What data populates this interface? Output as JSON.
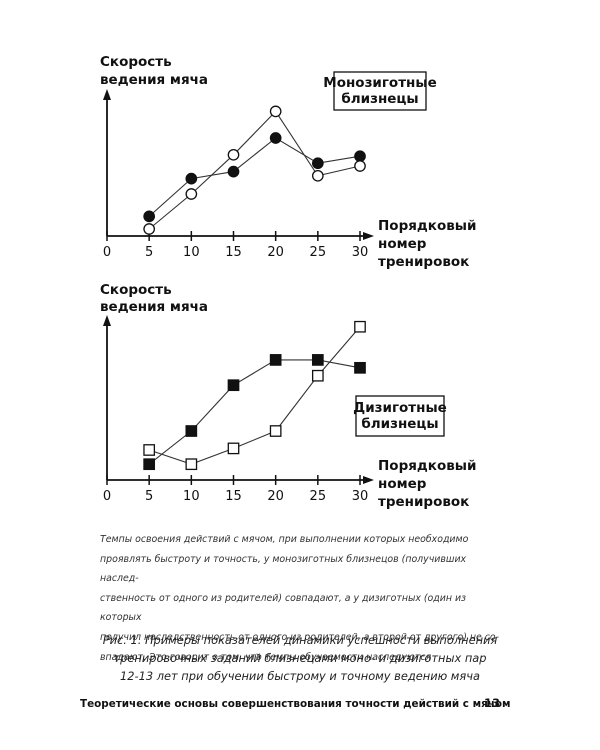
{
  "chart_data": [
    {
      "type": "line",
      "ylabel": [
        "Скорость",
        "ведения мяча"
      ],
      "xlabel": [
        "Порядковый",
        "номер",
        "тренировок"
      ],
      "xticks": [
        0,
        5,
        10,
        15,
        20,
        25,
        30
      ],
      "xlim": [
        0,
        30
      ],
      "ylim": [
        0,
        10
      ],
      "legend": [
        "Монозиготные",
        "близнецы"
      ],
      "legend_placement": "top-right",
      "marker_shape": "circle",
      "series": [
        {
          "style": "filled",
          "x": [
            5,
            10,
            15,
            20,
            25,
            30
          ],
          "y": [
            1.4,
            4.1,
            4.6,
            7.0,
            5.2,
            5.7
          ]
        },
        {
          "style": "open",
          "x": [
            5,
            10,
            15,
            20,
            25,
            30
          ],
          "y": [
            0.5,
            3.0,
            5.8,
            8.9,
            4.3,
            5.0
          ]
        }
      ]
    },
    {
      "type": "line",
      "ylabel": [
        "Скорость",
        "ведения мяча"
      ],
      "xlabel": [
        "Порядковый",
        "номер",
        "тренировок"
      ],
      "xticks": [
        0,
        5,
        10,
        15,
        20,
        25,
        30
      ],
      "xlim": [
        0,
        30
      ],
      "ylim": [
        0,
        10
      ],
      "legend": [
        "Дизиготные",
        "близнецы"
      ],
      "legend_placement": "bottom-right",
      "marker_shape": "square",
      "series": [
        {
          "style": "filled",
          "x": [
            5,
            10,
            15,
            20,
            25,
            30
          ],
          "y": [
            1.0,
            3.1,
            6.0,
            7.6,
            7.6,
            7.1
          ]
        },
        {
          "style": "open",
          "x": [
            5,
            10,
            15,
            20,
            25,
            30
          ],
          "y": [
            1.9,
            1.0,
            2.0,
            3.1,
            6.6,
            9.7
          ]
        }
      ]
    }
  ],
  "caption_lines": [
    "Темпы освоения действий с мячом, при выполнении которых необходимо",
    "проявлять быстроту и точность, у монозиготных близнецов (получивших наслед-",
    "ственность от одного из родителей) совпадают, а у дизиготных (один из которых",
    "получил наследственность от одного из родителей, а второй от другого) не со-",
    "впадают. Это говорит о том, что темпы обучаемости наследуются"
  ],
  "figure_caption_lines": [
    "Рис. 1. Примеры показателей динамики успешности выполнения",
    "тренировочных заданий близнецами моно- и дизиготных пар",
    "12-13 лет при обучении быстрому и точному ведению мяча"
  ],
  "footer": {
    "title": "Теоретические основы совершенствования точности действий с мячом",
    "page": "13"
  }
}
